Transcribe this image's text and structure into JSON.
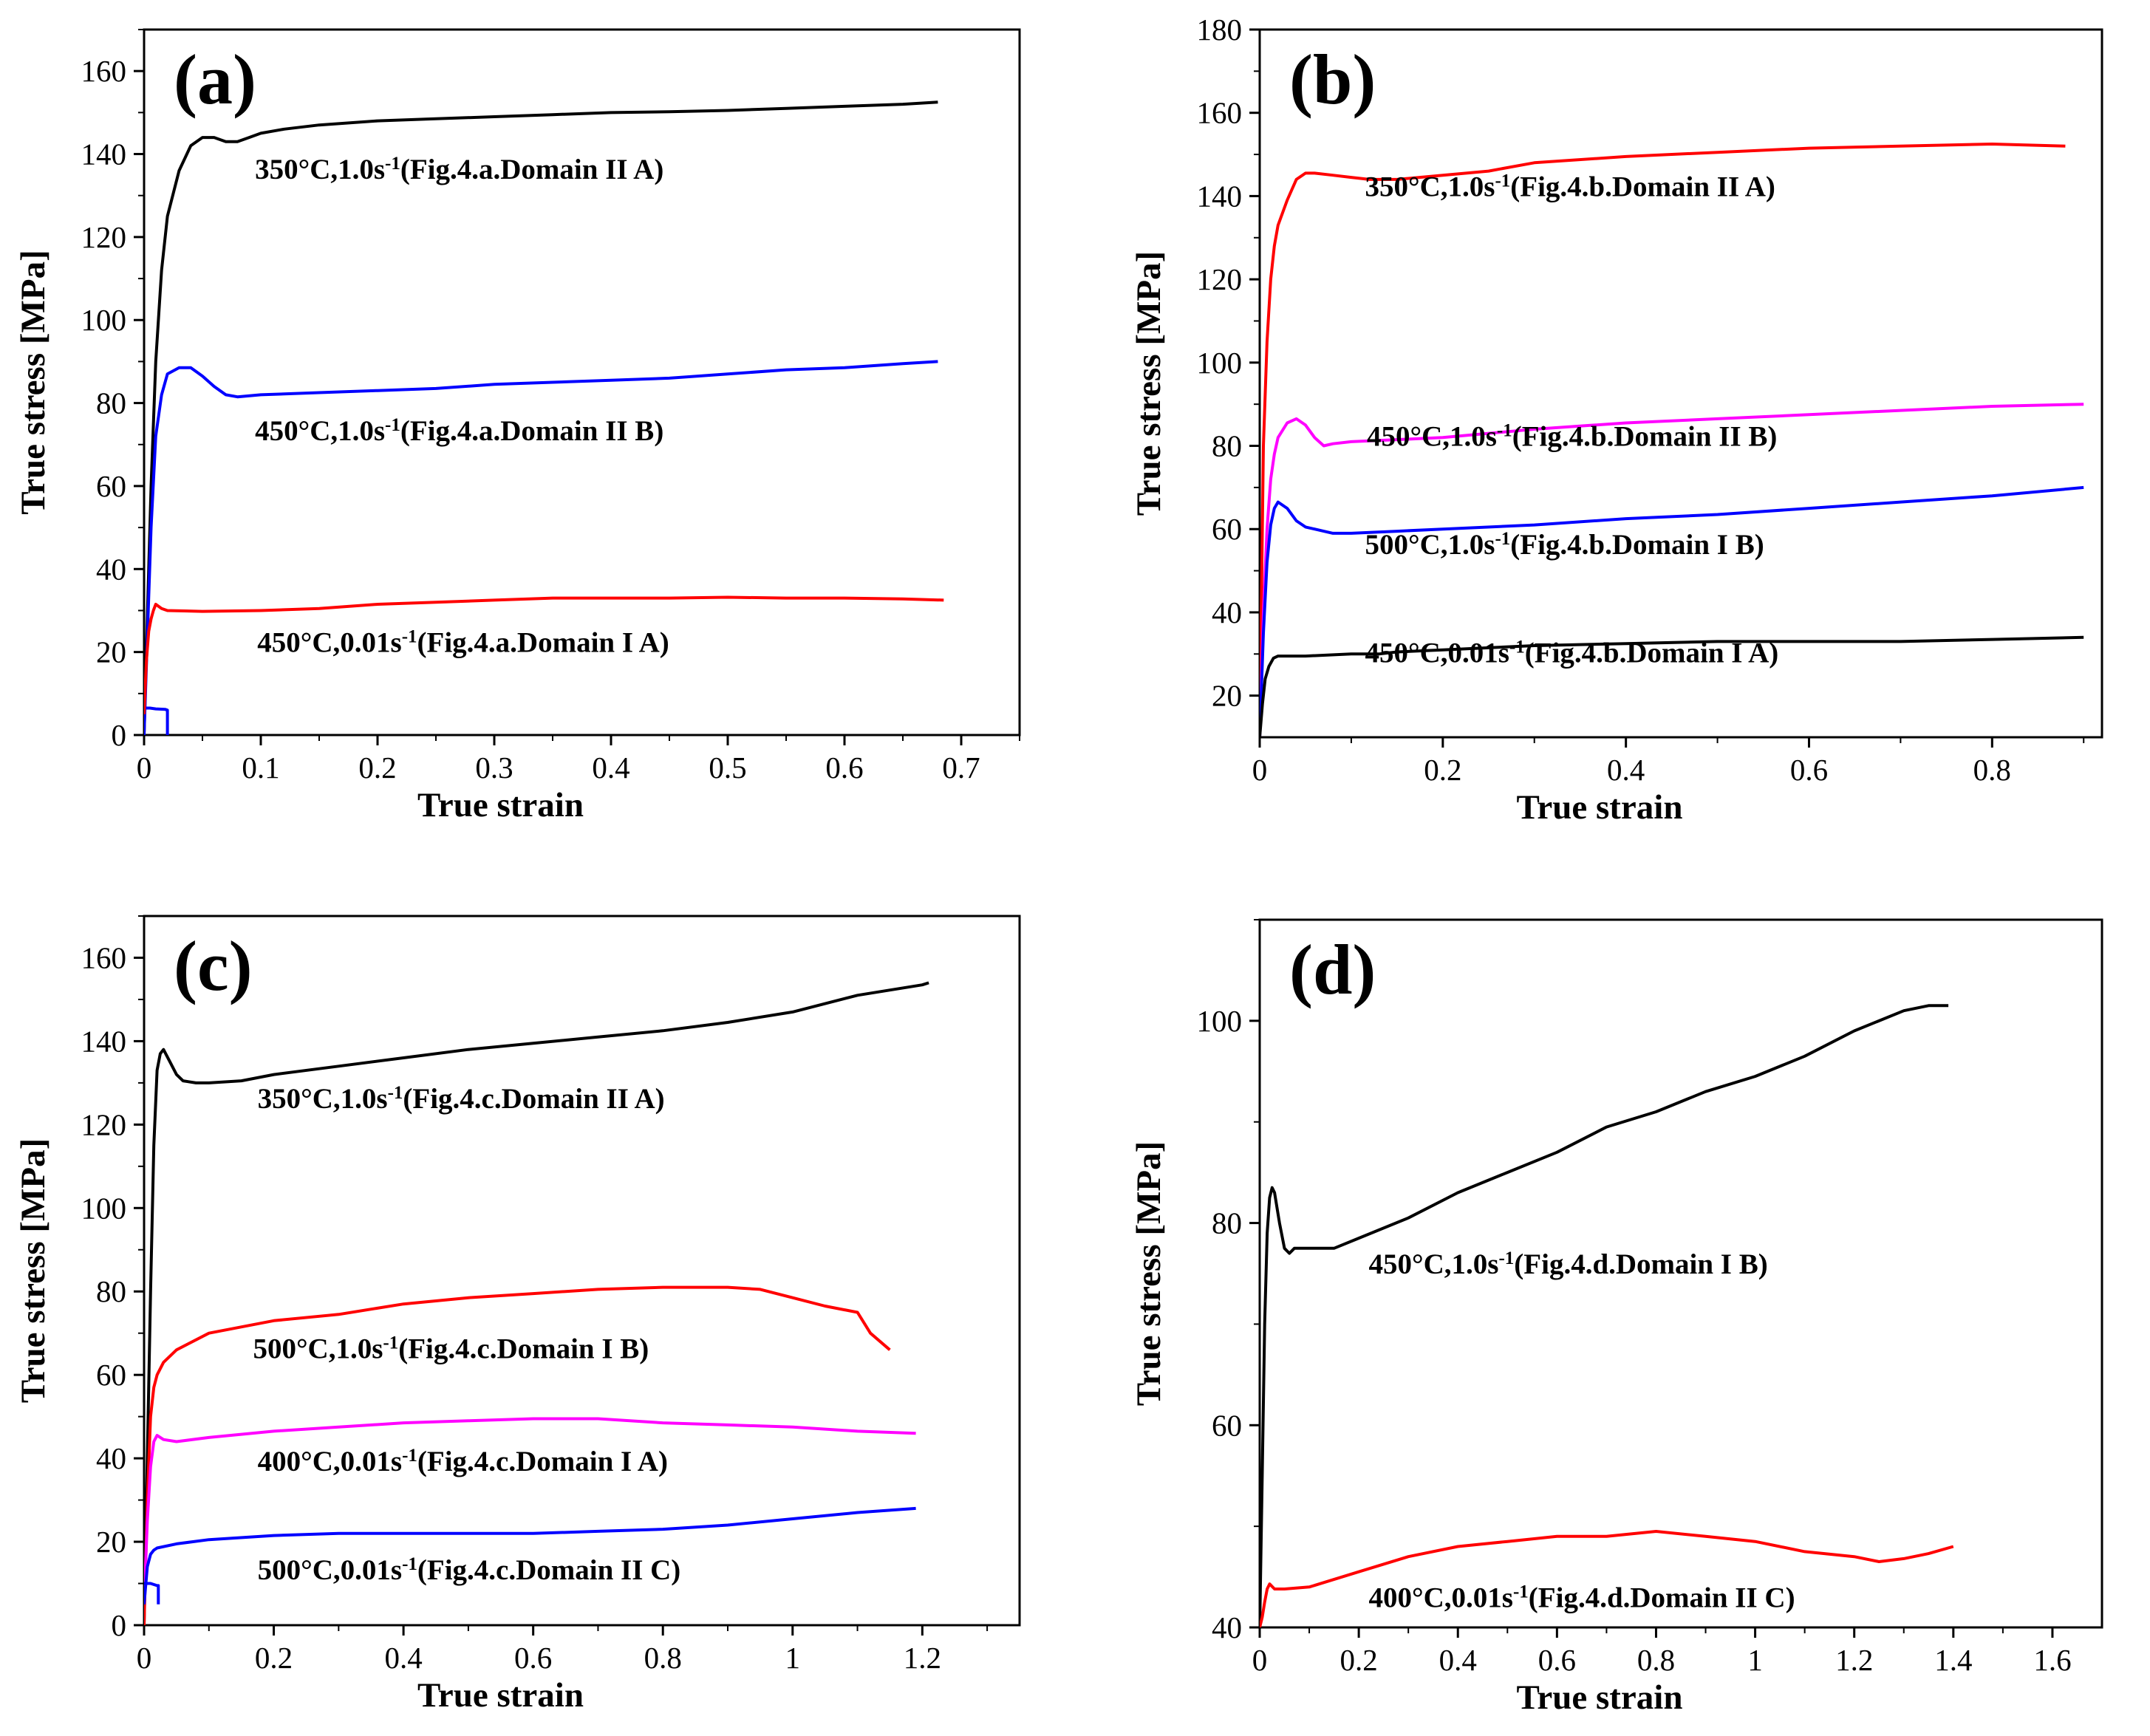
{
  "chart_data": [
    {
      "type": "line",
      "panel": "(a)",
      "xlabel": "True strain",
      "ylabel": "True stress [MPa]",
      "xlim": [
        0,
        0.75
      ],
      "ylim": [
        0,
        170
      ],
      "xticks": [
        0,
        0.1,
        0.2,
        0.3,
        0.4,
        0.5,
        0.6,
        0.7
      ],
      "xtick_labels": [
        "0",
        "0.1",
        "0.2",
        "0.3",
        "0.4",
        "0.5",
        "0.6",
        "0.7"
      ],
      "yticks": [
        0,
        20,
        40,
        60,
        80,
        100,
        120,
        140,
        160
      ],
      "ytick_labels": [
        "0",
        "20",
        "40",
        "60",
        "80",
        "100",
        "120",
        "140",
        "160"
      ],
      "series": [
        {
          "name": "350°C,1.0s-1",
          "color": "#000000",
          "label": "350°C,1.0s",
          "sup": "-1",
          "label_suffix": "(Fig.4.a.Domain II A)",
          "x": [
            0,
            0.003,
            0.006,
            0.01,
            0.015,
            0.02,
            0.03,
            0.04,
            0.05,
            0.06,
            0.07,
            0.08,
            0.09,
            0.1,
            0.12,
            0.15,
            0.2,
            0.25,
            0.3,
            0.35,
            0.4,
            0.45,
            0.5,
            0.55,
            0.6,
            0.65,
            0.68
          ],
          "y": [
            0,
            30,
            60,
            90,
            112,
            125,
            136,
            142,
            144,
            144,
            143,
            143,
            144,
            145,
            146,
            147,
            148,
            148.5,
            149,
            149.5,
            150,
            150.2,
            150.5,
            151,
            151.5,
            152,
            152.5
          ]
        },
        {
          "name": "450°C,1.0s-1",
          "color": "#0000ff",
          "label": "450°C,1.0s",
          "sup": "-1",
          "label_suffix": "(Fig.4.a.Domain II B)",
          "x": [
            0,
            0.003,
            0.006,
            0.01,
            0.015,
            0.02,
            0.03,
            0.04,
            0.05,
            0.06,
            0.07,
            0.08,
            0.1,
            0.15,
            0.2,
            0.25,
            0.3,
            0.35,
            0.4,
            0.45,
            0.5,
            0.55,
            0.6,
            0.65,
            0.68
          ],
          "y": [
            0,
            25,
            50,
            72,
            82,
            87,
            88.5,
            88.5,
            86.5,
            84,
            82,
            81.5,
            82,
            82.5,
            83,
            83.5,
            84.5,
            85,
            85.5,
            86,
            87,
            88,
            88.5,
            89.5,
            90
          ]
        },
        {
          "name": "450°C,1.0s-1 (start)",
          "color": "#0000ff",
          "label": "",
          "sup": "",
          "label_suffix": "",
          "x": [
            0,
            0.005,
            0.01,
            0.018,
            0.02,
            0.02
          ],
          "y": [
            6.5,
            6.5,
            6.3,
            6.2,
            6,
            0
          ]
        },
        {
          "name": "450°C,0.01s-1",
          "color": "#ff0000",
          "label": "450°C,0.01s",
          "sup": "-1",
          "label_suffix": "(Fig.4.a.Domain I A)",
          "x": [
            0,
            0.002,
            0.004,
            0.006,
            0.008,
            0.01,
            0.015,
            0.02,
            0.05,
            0.1,
            0.15,
            0.2,
            0.25,
            0.3,
            0.35,
            0.4,
            0.45,
            0.5,
            0.55,
            0.6,
            0.65,
            0.685
          ],
          "y": [
            5,
            18,
            25,
            28,
            30,
            31.5,
            30.5,
            30,
            29.8,
            30,
            30.5,
            31.5,
            32,
            32.5,
            33,
            33,
            33,
            33.2,
            33,
            33,
            32.8,
            32.5
          ]
        }
      ],
      "annotations": [
        {
          "series": 0,
          "x": 0.095,
          "y": 134
        },
        {
          "series": 1,
          "x": 0.095,
          "y": 71
        },
        {
          "series": 3,
          "x": 0.097,
          "y": 20
        }
      ]
    },
    {
      "type": "line",
      "panel": "(b)",
      "xlabel": "True strain",
      "ylabel": "True stress [MPa]",
      "xlim": [
        0,
        0.92
      ],
      "ylim": [
        10,
        180
      ],
      "xticks": [
        0,
        0.2,
        0.4,
        0.6,
        0.8
      ],
      "xtick_labels": [
        "0",
        "0.2",
        "0.4",
        "0.6",
        "0.8"
      ],
      "yticks": [
        20,
        40,
        60,
        80,
        100,
        120,
        140,
        160,
        180
      ],
      "ytick_labels": [
        "20",
        "40",
        "60",
        "80",
        "100",
        "120",
        "140",
        "160",
        "180"
      ],
      "series": [
        {
          "name": "350°C,1.0s-1",
          "color": "#ff0000",
          "label": "350°C,1.0s",
          "sup": "-1",
          "label_suffix": "(Fig.4.b.Domain II A)",
          "x": [
            0,
            0.004,
            0.008,
            0.012,
            0.016,
            0.02,
            0.03,
            0.04,
            0.05,
            0.06,
            0.08,
            0.1,
            0.12,
            0.15,
            0.2,
            0.25,
            0.3,
            0.4,
            0.5,
            0.6,
            0.7,
            0.8,
            0.88
          ],
          "y": [
            10,
            80,
            105,
            120,
            128,
            133,
            139,
            144,
            145.5,
            145.5,
            145,
            144.5,
            144,
            144,
            145,
            146,
            148,
            149.5,
            150.5,
            151.5,
            152,
            152.5,
            152
          ]
        },
        {
          "name": "450°C,1.0s-1",
          "color": "#ff00ff",
          "label": "450°C,1.0s",
          "sup": "-1",
          "label_suffix": "(Fig.4.b.Domain II B)",
          "x": [
            0,
            0.004,
            0.008,
            0.012,
            0.016,
            0.02,
            0.03,
            0.04,
            0.05,
            0.06,
            0.07,
            0.08,
            0.1,
            0.15,
            0.2,
            0.3,
            0.4,
            0.5,
            0.6,
            0.7,
            0.8,
            0.9
          ],
          "y": [
            10,
            40,
            60,
            72,
            78,
            82,
            85.5,
            86.5,
            85,
            82,
            80,
            80.5,
            81,
            81.5,
            82,
            84,
            85.5,
            86.5,
            87.5,
            88.5,
            89.5,
            90
          ]
        },
        {
          "name": "500°C,1.0s-1",
          "color": "#0000ff",
          "label": "500°C,1.0s",
          "sup": "-1",
          "label_suffix": "(Fig.4.b.Domain I B)",
          "x": [
            0,
            0.004,
            0.008,
            0.012,
            0.016,
            0.02,
            0.03,
            0.04,
            0.05,
            0.06,
            0.08,
            0.1,
            0.15,
            0.2,
            0.3,
            0.4,
            0.5,
            0.6,
            0.7,
            0.8,
            0.9
          ],
          "y": [
            10,
            35,
            52,
            61,
            65,
            66.5,
            65,
            62,
            60.5,
            60,
            59,
            59,
            59.5,
            60,
            61,
            62.5,
            63.5,
            65,
            66.5,
            68,
            70
          ]
        },
        {
          "name": "450°C,0.01s-1",
          "color": "#000000",
          "label": "450°C,0.01s",
          "sup": "-1",
          "label_suffix": "(Fig.4.b.Domain I A)",
          "x": [
            0,
            0.003,
            0.006,
            0.01,
            0.015,
            0.02,
            0.05,
            0.1,
            0.13,
            0.15,
            0.2,
            0.3,
            0.4,
            0.5,
            0.6,
            0.7,
            0.8,
            0.9
          ],
          "y": [
            10,
            18,
            24,
            27,
            29,
            29.5,
            29.5,
            30,
            30,
            30.5,
            31,
            32,
            32.5,
            33,
            33,
            33,
            33.5,
            34
          ]
        }
      ],
      "annotations": [
        {
          "series": 0,
          "x": 0.115,
          "y": 140
        },
        {
          "series": 1,
          "x": 0.117,
          "y": 80
        },
        {
          "series": 2,
          "x": 0.115,
          "y": 54
        },
        {
          "series": 3,
          "x": 0.115,
          "y": 28
        }
      ]
    },
    {
      "type": "line",
      "panel": "(c)",
      "xlabel": "True strain",
      "ylabel": "True stress [MPa]",
      "xlim": [
        0,
        1.35
      ],
      "ylim": [
        0,
        170
      ],
      "xticks": [
        0,
        0.2,
        0.4,
        0.6,
        0.8,
        1,
        1.2
      ],
      "xtick_labels": [
        "0",
        "0.2",
        "0.4",
        "0.6",
        "0.8",
        "1",
        "1.2"
      ],
      "yticks": [
        0,
        20,
        40,
        60,
        80,
        100,
        120,
        140,
        160
      ],
      "ytick_labels": [
        "0",
        "20",
        "40",
        "60",
        "80",
        "100",
        "120",
        "140",
        "160"
      ],
      "series": [
        {
          "name": "350°C,1.0s-1",
          "color": "#000000",
          "label": "350°C,1.0s",
          "sup": "-1",
          "label_suffix": "(Fig.4.c.Domain II A)",
          "x": [
            0,
            0.005,
            0.01,
            0.015,
            0.02,
            0.025,
            0.03,
            0.04,
            0.05,
            0.06,
            0.08,
            0.1,
            0.15,
            0.2,
            0.3,
            0.4,
            0.5,
            0.6,
            0.7,
            0.8,
            0.9,
            1.0,
            1.1,
            1.2,
            1.21
          ],
          "y": [
            0,
            40,
            80,
            115,
            133,
            137,
            138,
            135,
            132,
            130.5,
            130,
            130,
            130.5,
            132,
            134,
            136,
            138,
            139.5,
            141,
            142.5,
            144.5,
            147,
            151,
            153.5,
            154
          ]
        },
        {
          "name": "500°C,1.0s-1",
          "color": "#ff0000",
          "label": "500°C,1.0s",
          "sup": "-1",
          "label_suffix": "(Fig.4.c.Domain I B)",
          "x": [
            0,
            0.005,
            0.01,
            0.015,
            0.02,
            0.03,
            0.05,
            0.1,
            0.2,
            0.3,
            0.4,
            0.5,
            0.6,
            0.7,
            0.8,
            0.9,
            0.95,
            1.0,
            1.05,
            1.1,
            1.12,
            1.15
          ],
          "y": [
            0,
            30,
            50,
            57,
            60,
            63,
            66,
            70,
            73,
            74.5,
            77,
            78.5,
            79.5,
            80.5,
            81,
            81,
            80.5,
            78.5,
            76.5,
            75,
            70,
            66
          ]
        },
        {
          "name": "400°C,0.01s-1",
          "color": "#ff00ff",
          "label": "400°C,0.01s",
          "sup": "-1",
          "label_suffix": "(Fig.4.c.Domain I A)",
          "x": [
            0,
            0.005,
            0.01,
            0.015,
            0.02,
            0.03,
            0.05,
            0.1,
            0.2,
            0.3,
            0.4,
            0.5,
            0.6,
            0.7,
            0.8,
            0.9,
            1.0,
            1.1,
            1.19
          ],
          "y": [
            5,
            25,
            38,
            44,
            45.5,
            44.5,
            44,
            45,
            46.5,
            47.5,
            48.5,
            49,
            49.5,
            49.5,
            48.5,
            48,
            47.5,
            46.5,
            46
          ]
        },
        {
          "name": "500°C,0.01s-1",
          "color": "#0000ff",
          "label": "500°C,0.01s",
          "sup": "-1",
          "label_suffix": "(Fig.4.c.Domain II C)",
          "x": [
            0,
            0.005,
            0.01,
            0.015,
            0.02,
            0.05,
            0.1,
            0.2,
            0.3,
            0.4,
            0.5,
            0.6,
            0.7,
            0.8,
            0.9,
            1.0,
            1.1,
            1.19
          ],
          "y": [
            5,
            14,
            17,
            18,
            18.5,
            19.5,
            20.5,
            21.5,
            22,
            22,
            22,
            22,
            22.5,
            23,
            24,
            25.5,
            27,
            28
          ]
        },
        {
          "name": "500°C,0.01s-1 (start)",
          "color": "#0000ff",
          "label": "",
          "sup": "",
          "label_suffix": "",
          "x": [
            0,
            0.01,
            0.02,
            0.022,
            0.022
          ],
          "y": [
            10,
            10,
            9.5,
            9.5,
            5
          ]
        }
      ],
      "annotations": [
        {
          "series": 0,
          "x": 0.175,
          "y": 124
        },
        {
          "series": 1,
          "x": 0.168,
          "y": 64
        },
        {
          "series": 2,
          "x": 0.175,
          "y": 37
        },
        {
          "series": 3,
          "x": 0.175,
          "y": 11
        }
      ]
    },
    {
      "type": "line",
      "panel": "(d)",
      "xlabel": "True strain",
      "ylabel": "True stress [MPa]",
      "xlim": [
        0,
        1.7
      ],
      "ylim": [
        40,
        110
      ],
      "xticks": [
        0,
        0.2,
        0.4,
        0.6,
        0.8,
        1,
        1.2,
        1.4,
        1.6
      ],
      "xtick_labels": [
        "0",
        "0.2",
        "0.4",
        "0.6",
        "0.8",
        "1",
        "1.2",
        "1.4",
        "1.6"
      ],
      "yticks": [
        40,
        60,
        80,
        100
      ],
      "ytick_labels": [
        "40",
        "60",
        "80",
        "100"
      ],
      "series": [
        {
          "name": "450°C,1.0s-1",
          "color": "#000000",
          "label": "450°C,1.0s",
          "sup": "-1",
          "label_suffix": "(Fig.4.d.Domain I B)",
          "x": [
            0,
            0.005,
            0.01,
            0.015,
            0.02,
            0.025,
            0.03,
            0.04,
            0.05,
            0.06,
            0.07,
            0.08,
            0.1,
            0.15,
            0.2,
            0.3,
            0.4,
            0.5,
            0.6,
            0.7,
            0.8,
            0.9,
            1.0,
            1.1,
            1.2,
            1.3,
            1.35,
            1.39
          ],
          "y": [
            40,
            55,
            70,
            79,
            82.5,
            83.5,
            83,
            80,
            77.5,
            77,
            77.5,
            77.5,
            77.5,
            77.5,
            78.5,
            80.5,
            83,
            85,
            87,
            89.5,
            91,
            93,
            94.5,
            96.5,
            99,
            101,
            101.5,
            101.5
          ]
        },
        {
          "name": "400°C,0.01s-1",
          "color": "#ff0000",
          "label": "400°C,0.01s",
          "sup": "-1",
          "label_suffix": "(Fig.4.d.Domain II C)",
          "x": [
            0,
            0.005,
            0.01,
            0.015,
            0.02,
            0.03,
            0.05,
            0.1,
            0.2,
            0.3,
            0.4,
            0.5,
            0.6,
            0.7,
            0.8,
            0.9,
            1.0,
            1.1,
            1.2,
            1.25,
            1.3,
            1.35,
            1.4
          ],
          "y": [
            40,
            41,
            42.5,
            43.8,
            44.3,
            43.8,
            43.8,
            44,
            45.5,
            47,
            48,
            48.5,
            49,
            49,
            49.5,
            49,
            48.5,
            47.5,
            47,
            46.5,
            46.8,
            47.3,
            48
          ]
        }
      ],
      "annotations": [
        {
          "series": 0,
          "x": 0.22,
          "y": 75
        },
        {
          "series": 1,
          "x": 0.22,
          "y": 42
        }
      ]
    }
  ]
}
